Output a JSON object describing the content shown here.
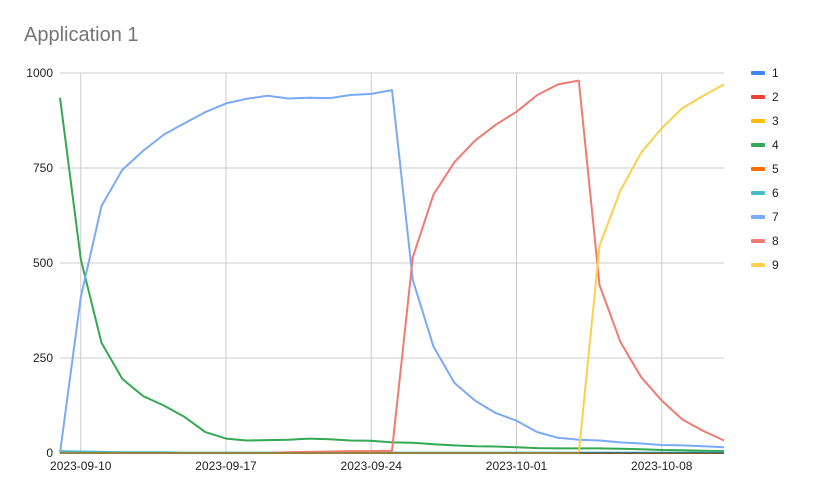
{
  "chart_data": {
    "type": "line",
    "title": "Application 1",
    "xlabel": "",
    "ylabel": "",
    "ylim": [
      0,
      1000
    ],
    "yticks": [
      "0",
      "250",
      "500",
      "750",
      "1000"
    ],
    "xticks": [
      "2023-09-10",
      "2023-09-17",
      "2023-09-24",
      "2023-10-01",
      "2023-10-08"
    ],
    "x": [
      "2023-09-09",
      "2023-09-10",
      "2023-09-11",
      "2023-09-12",
      "2023-09-13",
      "2023-09-14",
      "2023-09-15",
      "2023-09-16",
      "2023-09-17",
      "2023-09-18",
      "2023-09-19",
      "2023-09-20",
      "2023-09-21",
      "2023-09-22",
      "2023-09-23",
      "2023-09-24",
      "2023-09-25",
      "2023-09-26",
      "2023-09-27",
      "2023-09-28",
      "2023-09-29",
      "2023-09-30",
      "2023-10-01",
      "2023-10-02",
      "2023-10-03",
      "2023-10-04",
      "2023-10-05",
      "2023-10-06",
      "2023-10-07",
      "2023-10-08",
      "2023-10-09",
      "2023-10-10",
      "2023-10-11"
    ],
    "grid": true,
    "legend_position": "right",
    "series": [
      {
        "name": "1",
        "color": "#4285f4",
        "values": [
          0,
          0,
          0,
          0,
          0,
          0,
          0,
          0,
          0,
          0,
          0,
          0,
          0,
          0,
          0,
          0,
          0,
          0,
          0,
          0,
          0,
          0,
          0,
          0,
          0,
          0,
          0,
          0,
          0,
          0,
          0,
          0,
          0
        ]
      },
      {
        "name": "2",
        "color": "#ea4335",
        "values": [
          0,
          0,
          0,
          0,
          0,
          0,
          0,
          0,
          0,
          0,
          0,
          0,
          0,
          0,
          0,
          0,
          0,
          0,
          0,
          0,
          0,
          0,
          0,
          0,
          0,
          0,
          0,
          0,
          0,
          0,
          0,
          0,
          0
        ]
      },
      {
        "name": "3",
        "color": "#fbbc04",
        "values": [
          0,
          0,
          0,
          0,
          0,
          0,
          0,
          0,
          0,
          0,
          0,
          0,
          0,
          0,
          0,
          0,
          0,
          0,
          0,
          0,
          0,
          0,
          0,
          0,
          0,
          0,
          0,
          0,
          0,
          0,
          0,
          0,
          0
        ]
      },
      {
        "name": "4",
        "color": "#34a853",
        "values": [
          935,
          510,
          290,
          195,
          150,
          125,
          95,
          55,
          38,
          33,
          34,
          35,
          38,
          36,
          33,
          32,
          28,
          27,
          23,
          20,
          18,
          17,
          15,
          13,
          12,
          12,
          12,
          11,
          10,
          8,
          7,
          6,
          5
        ]
      },
      {
        "name": "5",
        "color": "#ff6d01",
        "values": [
          0,
          0,
          0,
          0,
          0,
          0,
          0,
          0,
          0,
          0,
          0,
          0,
          0,
          0,
          0,
          0,
          0,
          0,
          0,
          0,
          0,
          0,
          0,
          0,
          0,
          0,
          0,
          0,
          0,
          0,
          0,
          0,
          0
        ]
      },
      {
        "name": "6",
        "color": "#46bdc6",
        "values": [
          5,
          4,
          3,
          2,
          2,
          2,
          1,
          1,
          1,
          1,
          1,
          1,
          1,
          1,
          1,
          1,
          1,
          1,
          1,
          1,
          1,
          1,
          1,
          1,
          1,
          1,
          1,
          1,
          1,
          1,
          1,
          1,
          1
        ]
      },
      {
        "name": "7",
        "color": "#7baaf7",
        "values": [
          0,
          410,
          650,
          745,
          795,
          838,
          868,
          897,
          920,
          932,
          940,
          933,
          935,
          934,
          942,
          945,
          955,
          455,
          280,
          185,
          138,
          105,
          85,
          55,
          40,
          35,
          33,
          28,
          25,
          21,
          20,
          18,
          15
        ]
      },
      {
        "name": "8",
        "color": "#f07b72",
        "values": [
          0,
          0,
          0,
          0,
          0,
          0,
          0,
          0,
          0,
          0,
          0,
          2,
          3,
          4,
          5,
          5,
          6,
          515,
          680,
          765,
          822,
          864,
          898,
          942,
          970,
          980,
          442,
          293,
          200,
          138,
          88,
          58,
          33
        ]
      },
      {
        "name": "9",
        "color": "#fcd04f",
        "values": [
          0,
          0,
          0,
          0,
          0,
          0,
          0,
          0,
          0,
          0,
          0,
          0,
          0,
          0,
          0,
          0,
          0,
          0,
          0,
          0,
          0,
          0,
          0,
          0,
          0,
          0,
          545,
          690,
          790,
          855,
          908,
          940,
          970
        ]
      }
    ]
  }
}
